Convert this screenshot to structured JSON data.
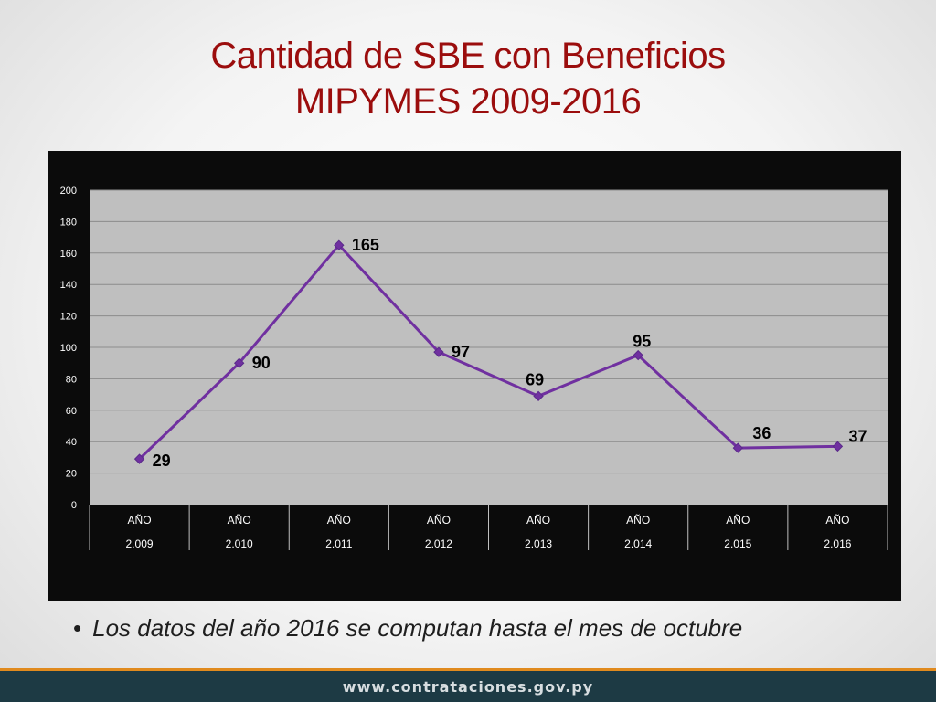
{
  "slide": {
    "title_line1": "Cantidad de SBE con Beneficios",
    "title_line2": "MIPYMES 2009-2016",
    "note_bullet": "•",
    "note": "Los datos del año 2016 se computan hasta el mes de octubre",
    "footer": "www.contrataciones.gov.py"
  },
  "colors": {
    "title": "#9b0d0d",
    "line": "#7030a0",
    "plot_bg": "#bfbfbf",
    "frame_bg": "#0b0b0b",
    "footer_bg": "#1d3a44",
    "footer_accent": "#e08a1e"
  },
  "chart_data": {
    "type": "line",
    "categories": [
      "AÑO 2.009",
      "AÑO 2.010",
      "AÑO 2.011",
      "AÑO 2.012",
      "AÑO 2.013",
      "AÑO 2.014",
      "AÑO 2.015",
      "AÑO 2.016"
    ],
    "category_lines": [
      [
        "AÑO",
        "2.009"
      ],
      [
        "AÑO",
        "2.010"
      ],
      [
        "AÑO",
        "2.011"
      ],
      [
        "AÑO",
        "2.012"
      ],
      [
        "AÑO",
        "2.013"
      ],
      [
        "AÑO",
        "2.014"
      ],
      [
        "AÑO",
        "2.015"
      ],
      [
        "AÑO",
        "2.016"
      ]
    ],
    "series": [
      {
        "values": [
          29,
          90,
          165,
          97,
          69,
          95,
          36,
          37
        ]
      }
    ],
    "data_labels": [
      "29",
      "90",
      "165",
      "97",
      "69",
      "95",
      "36",
      "37"
    ],
    "yticks": [
      0,
      20,
      40,
      60,
      80,
      100,
      120,
      140,
      160,
      180,
      200
    ],
    "ylim": [
      0,
      200
    ],
    "grid": true,
    "legend": "none",
    "marker": "diamond"
  }
}
